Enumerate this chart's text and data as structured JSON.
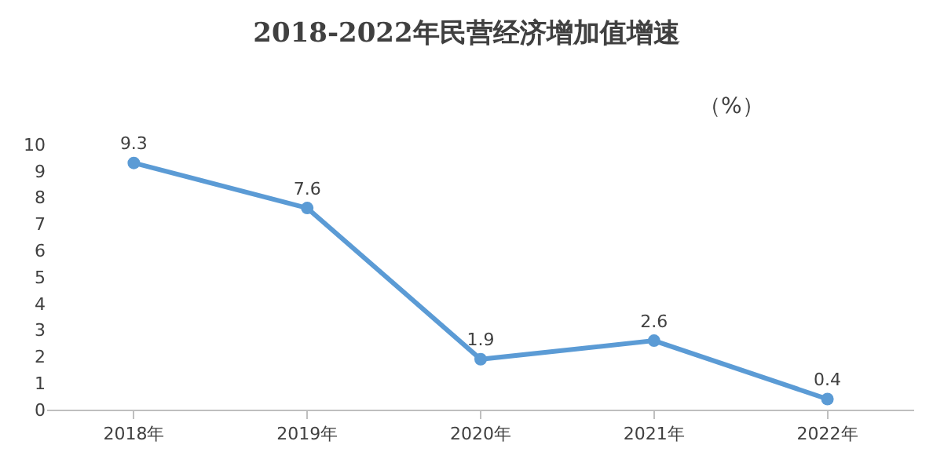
{
  "chart_data": {
    "type": "line",
    "title": "2018-2022年民营经济增加值增速",
    "annotations": [
      "（%）"
    ],
    "categories": [
      "2018年",
      "2019年",
      "2020年",
      "2021年",
      "2022年"
    ],
    "series": [
      {
        "color": "#5b9bd5",
        "values": [
          9.3,
          7.6,
          1.9,
          2.6,
          0.4
        ]
      }
    ],
    "ylim": [
      0,
      10
    ],
    "yticks": [
      0,
      1,
      2,
      3,
      4,
      5,
      6,
      7,
      8,
      9,
      10
    ],
    "grid": false,
    "marker": "circle",
    "line_style": "solid",
    "data_labels": true
  }
}
